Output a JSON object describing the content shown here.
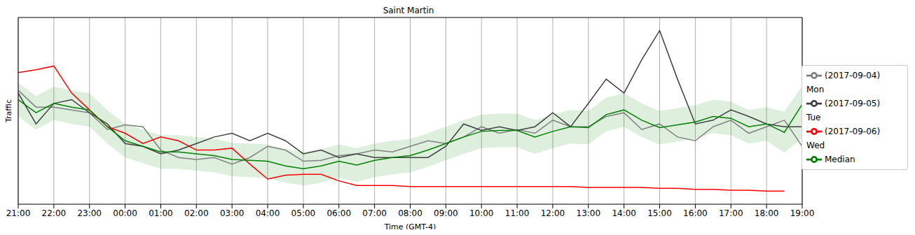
{
  "chart_data": {
    "type": "line",
    "title": "Saint Martin",
    "x_label": "Time (GMT-4)",
    "y_label": "Traffic",
    "x": [
      0,
      0.5,
      1,
      1.5,
      2,
      2.5,
      3,
      3.5,
      4,
      4.5,
      5,
      5.5,
      6,
      6.5,
      7,
      7.5,
      8,
      8.5,
      9,
      9.5,
      10,
      10.5,
      11,
      11.5,
      12,
      12.5,
      13,
      13.5,
      14,
      14.5,
      15,
      15.5,
      16,
      16.5,
      17,
      17.5,
      18,
      18.5,
      19,
      19.5,
      20,
      20.5,
      21,
      21.5,
      22
    ],
    "xlim": [
      0,
      22
    ],
    "xticks": [
      {
        "value": 0,
        "label": "21:00"
      },
      {
        "value": 1,
        "label": "22:00"
      },
      {
        "value": 2,
        "label": "23:00"
      },
      {
        "value": 3,
        "label": "00:00"
      },
      {
        "value": 4,
        "label": "01:00"
      },
      {
        "value": 5,
        "label": "02:00"
      },
      {
        "value": 6,
        "label": "03:00"
      },
      {
        "value": 7,
        "label": "04:00"
      },
      {
        "value": 8,
        "label": "05:00"
      },
      {
        "value": 9,
        "label": "06:00"
      },
      {
        "value": 10,
        "label": "07:00"
      },
      {
        "value": 11,
        "label": "08:00"
      },
      {
        "value": 12,
        "label": "09:00"
      },
      {
        "value": 13,
        "label": "10:00"
      },
      {
        "value": 14,
        "label": "11:00"
      },
      {
        "value": 15,
        "label": "12:00"
      },
      {
        "value": 16,
        "label": "13:00"
      },
      {
        "value": 17,
        "label": "14:00"
      },
      {
        "value": 18,
        "label": "15:00"
      },
      {
        "value": 19,
        "label": "16:00"
      },
      {
        "value": 20,
        "label": "17:00"
      },
      {
        "value": 21,
        "label": "18:00"
      },
      {
        "value": 22,
        "label": "19:00"
      }
    ],
    "ylim": [
      0,
      100
    ],
    "yticks": [],
    "tick_labels": "x",
    "grid": true,
    "legend": "right",
    "series": [
      {
        "name": "(2017-09-04) Mon",
        "color": "#808080",
        "values": [
          61,
          52,
          52,
          50.5,
          49,
          40,
          42.5,
          41.5,
          29,
          25,
          24,
          25,
          21.5,
          25,
          31,
          29,
          23,
          23.5,
          26,
          27,
          29,
          28,
          31,
          34,
          32.5,
          36,
          41.5,
          38,
          40,
          38,
          45,
          41.5,
          41.5,
          47,
          49,
          40,
          43,
          36,
          34,
          41.5,
          45,
          38,
          41.5,
          45,
          31
        ]
      },
      {
        "name": "(2017-09-05) Tue",
        "color": "#404040",
        "values": [
          59.5,
          43,
          54,
          56,
          49,
          43,
          32.5,
          31,
          27,
          29,
          32.5,
          36,
          38,
          34,
          38,
          34,
          27,
          29,
          25,
          27,
          25,
          25,
          25,
          25,
          31,
          43,
          39.5,
          41.5,
          39.5,
          41.5,
          49,
          41.5,
          54,
          67,
          59.5,
          77.5,
          93,
          67,
          43,
          45,
          50.5,
          47,
          43,
          41.5,
          41.5
        ]
      },
      {
        "name": "(2017-09-06) Wed",
        "color": "#ff0000",
        "values": [
          70.5,
          72,
          74,
          59.5,
          50.5,
          41.5,
          38,
          32.5,
          36,
          34,
          29,
          29,
          30,
          21.5,
          13.5,
          15.5,
          16,
          16,
          12.5,
          10,
          10,
          10,
          9.5,
          9.5,
          9.5,
          9.5,
          9.5,
          9.5,
          9.5,
          9.5,
          9.5,
          9.5,
          9,
          9,
          9,
          9,
          8.5,
          8.5,
          8,
          8,
          7.5,
          7.5,
          7,
          7,
          null
        ]
      },
      {
        "name": "Median",
        "color": "#008000",
        "values": [
          56,
          49,
          54,
          52,
          50.5,
          41.5,
          34,
          31,
          28,
          28,
          27,
          26,
          24,
          23.5,
          23,
          20.5,
          19,
          20.5,
          23,
          21,
          23.5,
          25,
          26,
          29,
          32.5,
          36,
          39,
          39.5,
          39.5,
          36,
          39,
          41.5,
          41,
          48,
          50.5,
          45,
          41,
          42.5,
          44,
          47,
          46,
          41.5,
          43,
          38.5,
          53.5
        ],
        "band_lower": [
          47,
          40,
          45,
          43,
          41.5,
          32.5,
          25,
          22,
          19,
          19,
          18,
          17,
          15,
          14.5,
          14,
          11.5,
          10,
          11.5,
          14,
          12,
          14.5,
          16,
          17,
          20,
          23.5,
          27,
          30,
          30.5,
          30.5,
          27,
          30,
          32.5,
          32,
          39,
          41.5,
          36,
          32,
          33.5,
          35,
          38,
          37,
          32.5,
          34,
          27.5,
          35.5
        ],
        "band_upper": [
          65,
          58,
          63,
          61,
          59.5,
          50.5,
          43,
          40,
          37,
          37,
          36,
          35,
          33,
          32.5,
          32,
          29.5,
          28,
          29.5,
          32,
          30,
          32.5,
          34,
          35,
          38,
          41.5,
          45,
          48,
          48.5,
          48.5,
          45,
          48,
          50.5,
          50,
          57,
          59.5,
          54,
          50,
          51.5,
          53,
          56,
          55,
          50.5,
          52,
          49.5,
          63.5
        ]
      }
    ]
  }
}
